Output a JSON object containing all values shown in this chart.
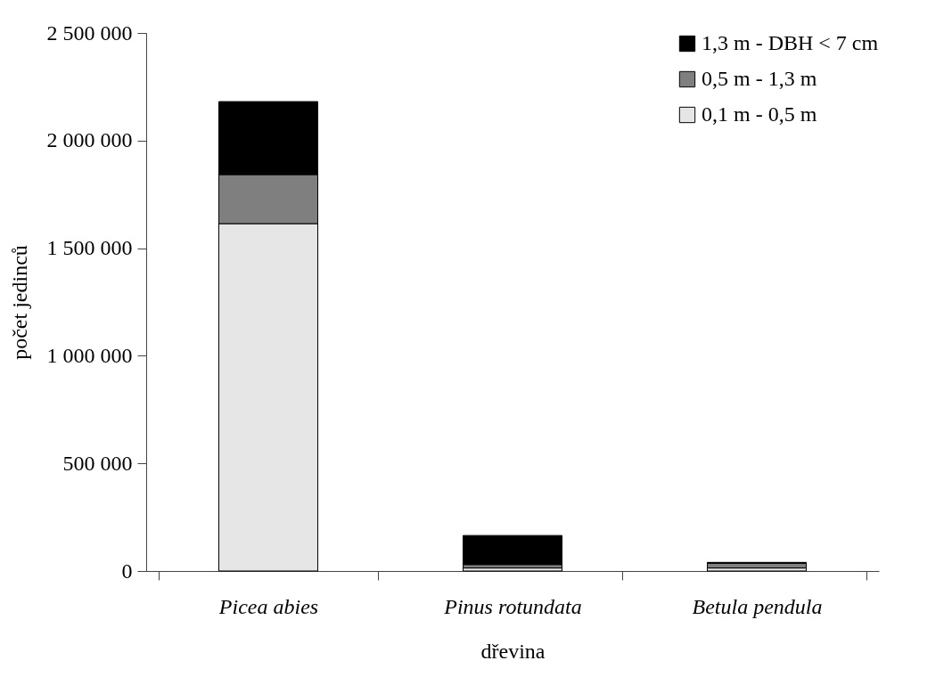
{
  "chart_data": {
    "type": "bar",
    "stacked": true,
    "xlabel": "dřevina",
    "ylabel": "počet jedinců",
    "categories": [
      "Picea abies",
      "Pinus rotundata",
      "Betula pendula"
    ],
    "series": [
      {
        "name": "0,1 m - 0,5 m",
        "color": "#e6e6e6",
        "values": [
          1614000,
          14000,
          14000
        ]
      },
      {
        "name": "0,5 m - 1,3 m",
        "color": "#7f7f7f",
        "values": [
          228000,
          16000,
          22000
        ]
      },
      {
        "name": "1,3 m - DBH < 7 cm",
        "color": "#000000",
        "values": [
          339000,
          135000,
          4000
        ]
      }
    ],
    "ylim": [
      0,
      2500000
    ],
    "yticks": [
      {
        "value": 0,
        "label": "0"
      },
      {
        "value": 500000,
        "label": "500 000"
      },
      {
        "value": 1000000,
        "label": "1 000 000"
      },
      {
        "value": 1500000,
        "label": "1 500 000"
      },
      {
        "value": 2000000,
        "label": "2 000 000"
      },
      {
        "value": 2500000,
        "label": "2 500 000"
      }
    ],
    "grid": false,
    "legend": "top right"
  }
}
